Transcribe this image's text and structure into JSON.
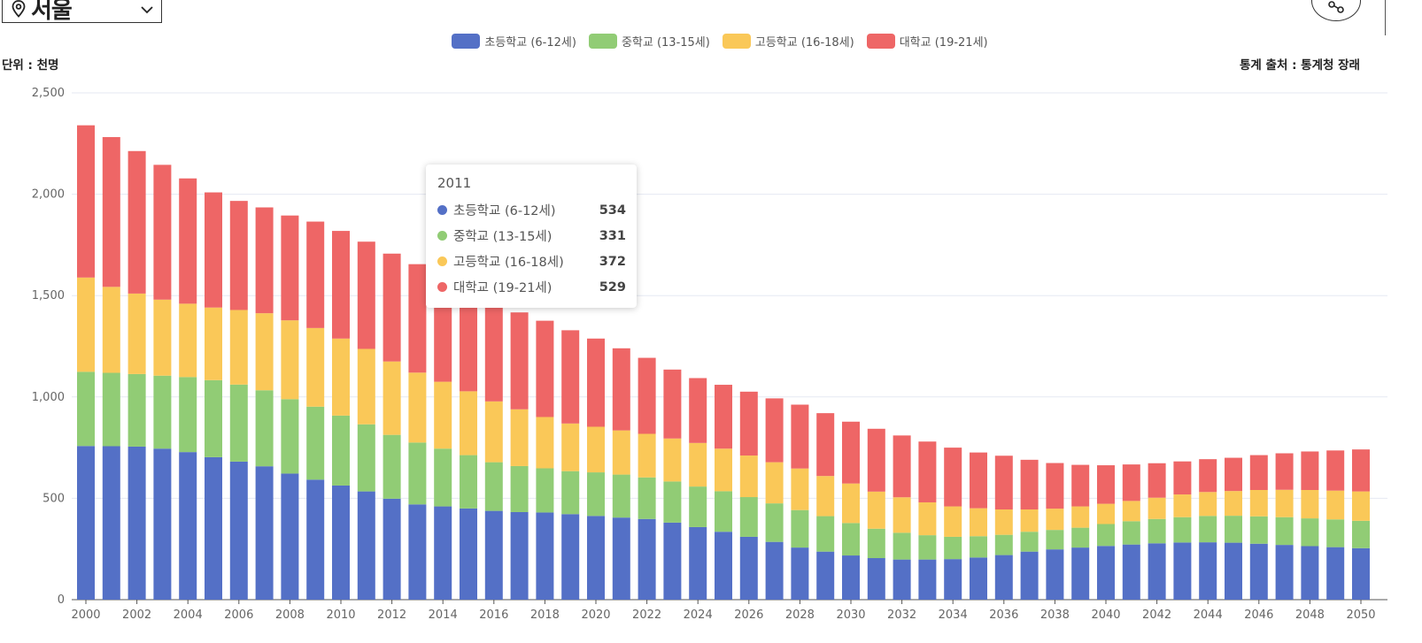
{
  "region": {
    "name": "서울"
  },
  "header": {
    "unit": "단위 : 천명",
    "source": "통계 출처 : 통계청 장래"
  },
  "tooltip": {
    "year": "2011",
    "rows": [
      {
        "label": "초등학교 (6-12세)",
        "value": "534"
      },
      {
        "label": "중학교 (13-15세)",
        "value": "331"
      },
      {
        "label": "고등학교 (16-18세)",
        "value": "372"
      },
      {
        "label": "대학교 (19-21세)",
        "value": "529"
      }
    ]
  },
  "chart_data": {
    "type": "bar",
    "stacked": true,
    "title": "",
    "xlabel": "",
    "ylabel": "",
    "ylim": [
      0,
      2500
    ],
    "yticks": [
      0,
      500,
      1000,
      1500,
      2000,
      2500
    ],
    "ytick_labels": [
      "0",
      "500",
      "1,000",
      "1,500",
      "2,000",
      "2,500"
    ],
    "grid": true,
    "legend_position": "top-center",
    "categories": [
      2000,
      2001,
      2002,
      2003,
      2004,
      2005,
      2006,
      2007,
      2008,
      2009,
      2010,
      2011,
      2012,
      2013,
      2014,
      2015,
      2016,
      2017,
      2018,
      2019,
      2020,
      2021,
      2022,
      2023,
      2024,
      2025,
      2026,
      2027,
      2028,
      2029,
      2030,
      2031,
      2032,
      2033,
      2034,
      2035,
      2036,
      2037,
      2038,
      2039,
      2040,
      2041,
      2042,
      2043,
      2044,
      2045,
      2046,
      2047,
      2048,
      2049,
      2050
    ],
    "xtick_labels": [
      "2000",
      "2002",
      "2004",
      "2006",
      "2008",
      "2010",
      "2012",
      "2014",
      "2016",
      "2018",
      "2020",
      "2022",
      "2024",
      "2026",
      "2028",
      "2030",
      "2032",
      "2034",
      "2036",
      "2038",
      "2040",
      "2042",
      "2044",
      "2046",
      "2048",
      "2050"
    ],
    "series": [
      {
        "name": "초등학교 (6-12세)",
        "color": "#5470c6",
        "values": [
          758,
          757,
          755,
          745,
          728,
          703,
          681,
          658,
          622,
          592,
          563,
          534,
          498,
          470,
          460,
          450,
          438,
          432,
          430,
          422,
          413,
          405,
          398,
          380,
          358,
          335,
          310,
          285,
          257,
          237,
          218,
          205,
          198,
          198,
          200,
          208,
          220,
          237,
          248,
          257,
          265,
          272,
          278,
          282,
          283,
          281,
          276,
          270,
          264,
          259,
          254
        ]
      },
      {
        "name": "중학교 (13-15세)",
        "color": "#91cc75",
        "values": [
          366,
          362,
          358,
          360,
          370,
          380,
          380,
          375,
          367,
          360,
          345,
          331,
          315,
          305,
          285,
          263,
          240,
          227,
          218,
          212,
          215,
          212,
          205,
          203,
          200,
          200,
          196,
          190,
          185,
          175,
          160,
          145,
          132,
          120,
          110,
          105,
          100,
          98,
          96,
          98,
          108,
          115,
          120,
          125,
          130,
          133,
          135,
          137,
          137,
          137,
          135
        ]
      },
      {
        "name": "고등학교 (16-18세)",
        "color": "#fac858",
        "values": [
          465,
          424,
          397,
          375,
          362,
          358,
          368,
          380,
          389,
          388,
          380,
          372,
          362,
          345,
          330,
          315,
          300,
          280,
          253,
          235,
          225,
          218,
          215,
          212,
          215,
          210,
          205,
          203,
          205,
          198,
          195,
          183,
          175,
          162,
          150,
          138,
          125,
          110,
          105,
          105,
          100,
          100,
          105,
          112,
          118,
          122,
          130,
          135,
          140,
          142,
          145
        ]
      },
      {
        "name": "대학교 (19-21세)",
        "color": "#ee6666",
        "values": [
          751,
          739,
          703,
          665,
          618,
          568,
          538,
          522,
          517,
          525,
          531,
          529,
          532,
          535,
          525,
          515,
          495,
          478,
          475,
          460,
          435,
          405,
          375,
          340,
          320,
          315,
          315,
          315,
          315,
          310,
          305,
          310,
          305,
          300,
          290,
          275,
          265,
          245,
          225,
          205,
          190,
          180,
          170,
          163,
          162,
          164,
          172,
          180,
          190,
          198,
          207
        ]
      }
    ]
  }
}
